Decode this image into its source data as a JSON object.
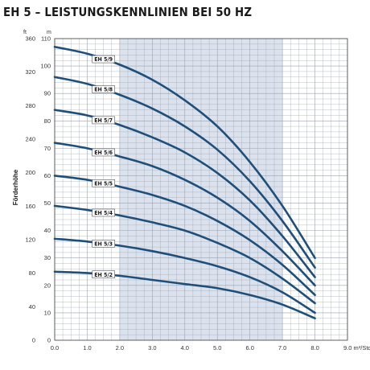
{
  "page_title": "EH 5 – LEISTUNGSKENNLINIEN BEI 50 HZ",
  "colors": {
    "curve": "#1f4e79",
    "highlight_band": "#dbe2ee",
    "grid": "#9aa3ad"
  },
  "chart_data": {
    "type": "line",
    "title": "EH 5 – LEISTUNGSKENNLINIEN BEI 50 HZ",
    "xlabel": "",
    "x_unit": "m³/Std.",
    "ylabel": "Förderhöhe",
    "y_unit_left": "ft",
    "y_unit_right": "m",
    "xlim": [
      0,
      9
    ],
    "ylim_m": [
      0,
      110
    ],
    "ylim_ft": [
      0,
      360
    ],
    "x_ticks": [
      "0.0",
      "1.0",
      "2.0",
      "3.0",
      "4.0",
      "5.0",
      "6.0",
      "7.0",
      "8.0",
      "9.0 m³/Std."
    ],
    "y_ticks_m": [
      "0",
      "10",
      "20",
      "30",
      "40",
      "50",
      "60",
      "70",
      "80",
      "90",
      "100",
      "110"
    ],
    "y_ticks_ft": [
      "0",
      "40",
      "80",
      "120",
      "160",
      "200",
      "240",
      "280",
      "320",
      "360"
    ],
    "highlight_range_x": [
      2.0,
      7.0
    ],
    "grid": true,
    "series": [
      {
        "name": "EH 5/2",
        "x": [
          0,
          1,
          2,
          3,
          4,
          5,
          6,
          7,
          8
        ],
        "y": [
          25,
          24.5,
          23.5,
          22,
          20.5,
          19,
          16.5,
          13,
          8
        ]
      },
      {
        "name": "EH 5/3",
        "x": [
          0,
          1,
          2,
          3,
          4,
          5,
          6,
          7,
          8
        ],
        "y": [
          37,
          36,
          34.5,
          32.5,
          30,
          27,
          23,
          17.5,
          10
        ]
      },
      {
        "name": "EH 5/4",
        "x": [
          0,
          1,
          2,
          3,
          4,
          5,
          6,
          7,
          8
        ],
        "y": [
          49,
          47.5,
          45.5,
          43,
          40,
          35.5,
          30,
          22.5,
          13.5
        ]
      },
      {
        "name": "EH 5/5",
        "x": [
          0,
          1,
          2,
          3,
          4,
          5,
          6,
          7,
          8
        ],
        "y": [
          60,
          58.5,
          56,
          53,
          49,
          43.5,
          36.5,
          27.5,
          16.5
        ]
      },
      {
        "name": "EH 5/6",
        "x": [
          0,
          1,
          2,
          3,
          4,
          5,
          6,
          7,
          8
        ],
        "y": [
          72,
          70,
          67,
          63.5,
          58.5,
          52,
          43.5,
          32.5,
          20
        ]
      },
      {
        "name": "EH 5/7",
        "x": [
          0,
          1,
          2,
          3,
          4,
          5,
          6,
          7,
          8
        ],
        "y": [
          84,
          82,
          78.5,
          74,
          68.5,
          61,
          51,
          38,
          23
        ]
      },
      {
        "name": "EH 5/8",
        "x": [
          0,
          1,
          2,
          3,
          4,
          5,
          6,
          7,
          8
        ],
        "y": [
          96,
          93.5,
          89.5,
          84.5,
          78,
          69.5,
          58,
          43.5,
          26.5
        ]
      },
      {
        "name": "EH 5/9",
        "x": [
          0,
          1,
          2,
          3,
          4,
          5,
          6,
          7,
          8
        ],
        "y": [
          107,
          104.5,
          100.5,
          95,
          87.5,
          78,
          65,
          49,
          30
        ]
      }
    ]
  }
}
